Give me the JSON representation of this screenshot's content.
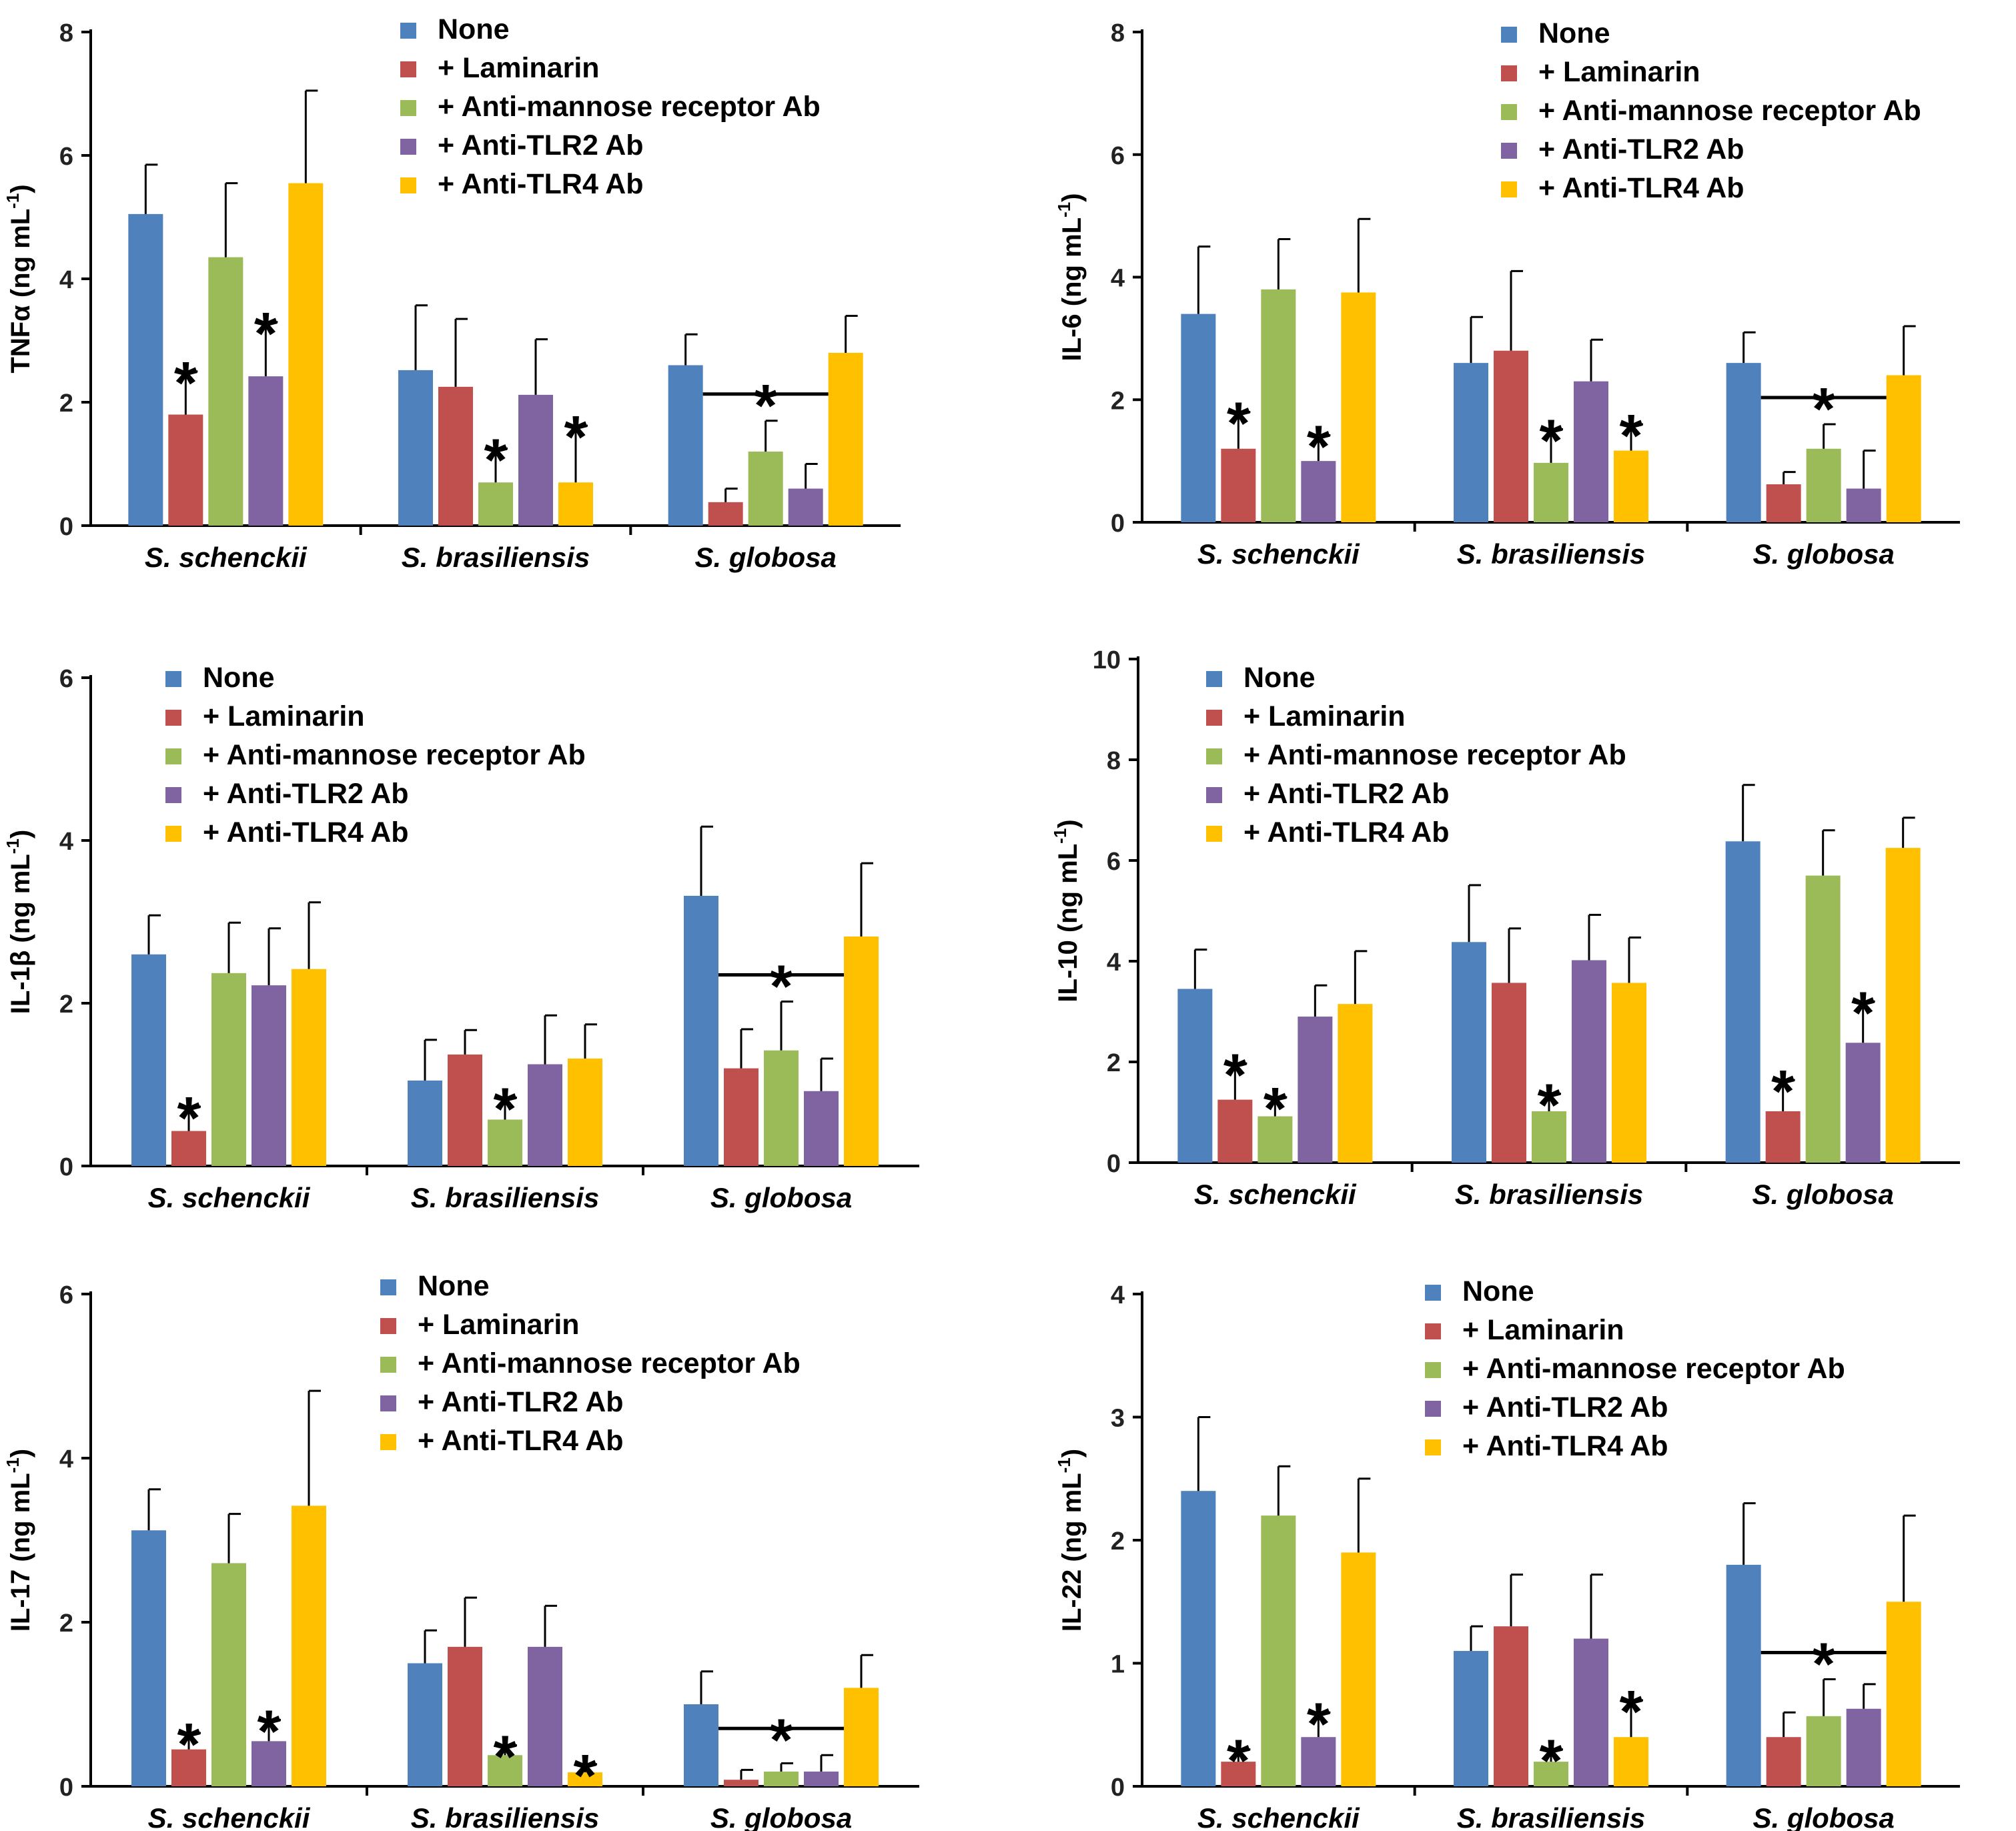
{
  "colors": {
    "none": "#4f81bd",
    "laminarin": "#c0504d",
    "anti_mannose": "#9bbb59",
    "anti_tlr2": "#8064a2",
    "anti_tlr4": "#ffc000",
    "axis": "#000000"
  },
  "chart_data": [
    {
      "type": "bar",
      "panel": "top-left",
      "ylabel_main": "TNFα (ng mL",
      "ylabel_exp": "-1",
      "ylabel_close": ")",
      "yticks": [
        "0",
        "2",
        "4",
        "6",
        "8"
      ],
      "ylim": [
        0,
        8
      ],
      "categories": [
        "S. schenckii",
        "S. brasiliensis",
        "S. globosa"
      ],
      "series": [
        {
          "name": "None",
          "values": [
            5.05,
            2.52,
            2.6
          ],
          "errors": [
            0.8,
            1.05,
            0.5
          ]
        },
        {
          "name": "+ Laminarin",
          "values": [
            1.8,
            2.25,
            0.38
          ],
          "errors": [
            0.7,
            1.1,
            0.22
          ]
        },
        {
          "name": "+ Anti-mannose receptor Ab",
          "values": [
            4.35,
            0.7,
            1.2
          ],
          "errors": [
            1.2,
            0.55,
            0.5
          ]
        },
        {
          "name": "+ Anti-TLR2 Ab",
          "values": [
            2.42,
            2.12,
            0.6
          ],
          "errors": [
            0.88,
            0.9,
            0.4
          ]
        },
        {
          "name": "+ Anti-TLR4 Ab",
          "values": [
            5.55,
            0.7,
            2.8
          ],
          "errors": [
            1.5,
            0.92,
            0.6
          ]
        }
      ],
      "annotations": [
        {
          "text": "*",
          "group": 0,
          "series": 1
        },
        {
          "text": "*",
          "group": 0,
          "series": 3
        },
        {
          "text": "*",
          "group": 1,
          "series": 2
        },
        {
          "text": "*",
          "group": 1,
          "series": 4
        },
        {
          "text": "*",
          "group": 2,
          "bracket_from": 1,
          "bracket_to": 3
        }
      ],
      "legend": "top"
    },
    {
      "type": "bar",
      "panel": "top-right",
      "ylabel_main": "IL-6 (ng mL",
      "ylabel_exp": "-1",
      "ylabel_close": ")",
      "yticks": [
        "0",
        "2",
        "4",
        "6",
        "8"
      ],
      "ylim": [
        0,
        8
      ],
      "categories": [
        "S. schenckii",
        "S. brasiliensis",
        "S. globosa"
      ],
      "series": [
        {
          "name": "None",
          "values": [
            3.4,
            2.6,
            2.6
          ],
          "errors": [
            1.1,
            0.75,
            0.5
          ]
        },
        {
          "name": "+ Laminarin",
          "values": [
            1.2,
            2.8,
            0.62
          ],
          "errors": [
            0.6,
            1.3,
            0.2
          ]
        },
        {
          "name": "+ Anti-mannose receptor Ab",
          "values": [
            3.8,
            0.97,
            1.2
          ],
          "errors": [
            0.82,
            0.55,
            0.4
          ]
        },
        {
          "name": "+ Anti-TLR2 Ab",
          "values": [
            1.0,
            2.3,
            0.55
          ],
          "errors": [
            0.42,
            0.68,
            0.62
          ]
        },
        {
          "name": "+ Anti-TLR4 Ab",
          "values": [
            3.75,
            1.17,
            2.4
          ],
          "errors": [
            1.2,
            0.43,
            0.8
          ]
        }
      ],
      "annotations": [
        {
          "text": "*",
          "group": 0,
          "series": 1
        },
        {
          "text": "*",
          "group": 0,
          "series": 3
        },
        {
          "text": "*",
          "group": 1,
          "series": 2
        },
        {
          "text": "*",
          "group": 1,
          "series": 4
        },
        {
          "text": "*",
          "group": 2,
          "bracket_from": 1,
          "bracket_to": 3
        }
      ],
      "legend": "top"
    },
    {
      "type": "bar",
      "panel": "middle-left",
      "ylabel_main": "IL-1β (ng mL",
      "ylabel_exp": "-1",
      "ylabel_close": ")",
      "yticks": [
        "0",
        "2",
        "4",
        "6"
      ],
      "ylim": [
        0,
        6
      ],
      "categories": [
        "S. schenckii",
        "S. brasiliensis",
        "S. globosa"
      ],
      "series": [
        {
          "name": "None",
          "values": [
            2.6,
            1.05,
            3.32
          ],
          "errors": [
            0.48,
            0.5,
            0.85
          ]
        },
        {
          "name": "+ Laminarin",
          "values": [
            0.43,
            1.37,
            1.2
          ],
          "errors": [
            0.3,
            0.3,
            0.48
          ]
        },
        {
          "name": "+ Anti-mannose receptor Ab",
          "values": [
            2.37,
            0.57,
            1.42
          ],
          "errors": [
            0.62,
            0.27,
            0.6
          ]
        },
        {
          "name": "+ Anti-TLR2 Ab",
          "values": [
            2.22,
            1.25,
            0.92
          ],
          "errors": [
            0.7,
            0.6,
            0.4
          ]
        },
        {
          "name": "+ Anti-TLR4 Ab",
          "values": [
            2.42,
            1.32,
            2.82
          ],
          "errors": [
            0.82,
            0.42,
            0.9
          ]
        }
      ],
      "annotations": [
        {
          "text": "*",
          "group": 0,
          "series": 1
        },
        {
          "text": "*",
          "group": 1,
          "series": 2
        },
        {
          "text": "*",
          "group": 2,
          "bracket_from": 1,
          "bracket_to": 3
        }
      ],
      "legend": "top"
    },
    {
      "type": "bar",
      "panel": "middle-right",
      "ylabel_main": "IL-10 (ng mL",
      "ylabel_exp": "-1",
      "ylabel_close": ")",
      "yticks": [
        "0",
        "2",
        "4",
        "6",
        "8",
        "10"
      ],
      "ylim": [
        0,
        10
      ],
      "categories": [
        "S. schenckii",
        "S. brasiliensis",
        "S. globosa"
      ],
      "series": [
        {
          "name": "None",
          "values": [
            3.45,
            4.38,
            6.38
          ],
          "errors": [
            0.78,
            1.13,
            1.12
          ]
        },
        {
          "name": "+ Laminarin",
          "values": [
            1.25,
            3.57,
            1.02
          ],
          "errors": [
            0.72,
            1.08,
            0.62
          ]
        },
        {
          "name": "+ Anti-mannose receptor Ab",
          "values": [
            0.92,
            1.02,
            5.7
          ],
          "errors": [
            0.38,
            0.35,
            0.9
          ]
        },
        {
          "name": "+ Anti-TLR2 Ab",
          "values": [
            2.9,
            4.02,
            2.38
          ],
          "errors": [
            0.62,
            0.9,
            0.82
          ]
        },
        {
          "name": "+ Anti-TLR4 Ab",
          "values": [
            3.15,
            3.57,
            6.25
          ],
          "errors": [
            1.05,
            0.9,
            0.6
          ]
        }
      ],
      "annotations": [
        {
          "text": "*",
          "group": 0,
          "series": 1
        },
        {
          "text": "*",
          "group": 0,
          "series": 2
        },
        {
          "text": "*",
          "group": 1,
          "series": 2
        },
        {
          "text": "*",
          "group": 2,
          "series": 1
        },
        {
          "text": "*",
          "group": 2,
          "series": 3
        }
      ],
      "legend": "top"
    },
    {
      "type": "bar",
      "panel": "bottom-left",
      "ylabel_main": "IL-17 (ng mL",
      "ylabel_exp": "-1",
      "ylabel_close": ")",
      "yticks": [
        "0",
        "2",
        "4",
        "6"
      ],
      "ylim": [
        0,
        6
      ],
      "categories": [
        "S. schenckii",
        "S. brasiliensis",
        "S. globosa"
      ],
      "series": [
        {
          "name": "None",
          "values": [
            3.12,
            1.5,
            1.0
          ],
          "errors": [
            0.5,
            0.4,
            0.4
          ]
        },
        {
          "name": "+ Laminarin",
          "values": [
            0.45,
            1.7,
            0.08
          ],
          "errors": [
            0.2,
            0.6,
            0.12
          ]
        },
        {
          "name": "+ Anti-mannose receptor Ab",
          "values": [
            2.72,
            0.38,
            0.18
          ],
          "errors": [
            0.6,
            0.12,
            0.1
          ]
        },
        {
          "name": "+ Anti-TLR2 Ab",
          "values": [
            0.55,
            1.7,
            0.18
          ],
          "errors": [
            0.26,
            0.5,
            0.2
          ]
        },
        {
          "name": "+ Anti-TLR4 Ab",
          "values": [
            3.42,
            0.17,
            1.2
          ],
          "errors": [
            1.4,
            0.1,
            0.4
          ]
        }
      ],
      "annotations": [
        {
          "text": "*",
          "group": 0,
          "series": 1
        },
        {
          "text": "*",
          "group": 0,
          "series": 3
        },
        {
          "text": "*",
          "group": 1,
          "series": 2
        },
        {
          "text": "*",
          "group": 1,
          "series": 4
        },
        {
          "text": "*",
          "group": 2,
          "bracket_from": 1,
          "bracket_to": 3
        }
      ],
      "legend": "top"
    },
    {
      "type": "bar",
      "panel": "bottom-right",
      "ylabel_main": "IL-22 (ng mL",
      "ylabel_exp": "-1",
      "ylabel_close": ")",
      "yticks": [
        "0",
        "1",
        "2",
        "3",
        "4"
      ],
      "ylim": [
        0,
        4
      ],
      "categories": [
        "S. schenckii",
        "S. brasiliensis",
        "S. globosa"
      ],
      "series": [
        {
          "name": "None",
          "values": [
            2.4,
            1.1,
            1.8
          ],
          "errors": [
            0.6,
            0.2,
            0.5
          ]
        },
        {
          "name": "+ Laminarin",
          "values": [
            0.2,
            1.3,
            0.4
          ],
          "errors": [
            0.1,
            0.42,
            0.2
          ]
        },
        {
          "name": "+ Anti-mannose receptor Ab",
          "values": [
            2.2,
            0.2,
            0.57
          ],
          "errors": [
            0.4,
            0.1,
            0.3
          ]
        },
        {
          "name": "+ Anti-TLR2 Ab",
          "values": [
            0.4,
            1.2,
            0.63
          ],
          "errors": [
            0.2,
            0.52,
            0.2
          ]
        },
        {
          "name": "+ Anti-TLR4 Ab",
          "values": [
            1.9,
            0.4,
            1.5
          ],
          "errors": [
            0.6,
            0.3,
            0.7
          ]
        }
      ],
      "annotations": [
        {
          "text": "*",
          "group": 0,
          "series": 1
        },
        {
          "text": "*",
          "group": 0,
          "series": 3
        },
        {
          "text": "*",
          "group": 1,
          "series": 2
        },
        {
          "text": "*",
          "group": 1,
          "series": 4
        },
        {
          "text": "*",
          "group": 2,
          "bracket_from": 1,
          "bracket_to": 3
        }
      ],
      "legend": "top"
    }
  ]
}
